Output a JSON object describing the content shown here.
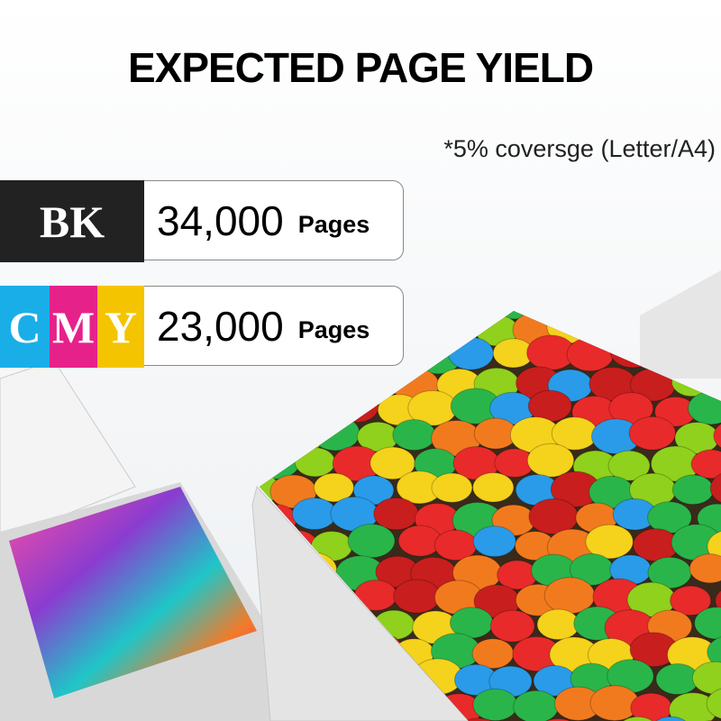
{
  "title": "EXPECTED PAGE YIELD",
  "note": "*5% coversge (Letter/A4)",
  "rows": [
    {
      "label": "BK",
      "count": "34,000",
      "unit": "Pages"
    },
    {
      "letters": [
        "C",
        "M",
        "Y"
      ],
      "count": "23,000",
      "unit": "Pages"
    }
  ]
}
